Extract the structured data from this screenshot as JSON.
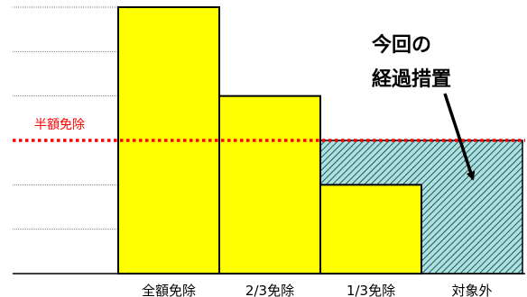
{
  "chart_data": {
    "type": "bar",
    "title": "",
    "xlabel": "",
    "ylabel": "",
    "categories": [
      "全額免除",
      "2/3免除",
      "1/3免除",
      "対象外"
    ],
    "values": [
      1,
      0.6667,
      0.3333,
      0
    ],
    "ylim": [
      0,
      1
    ],
    "grid": true,
    "colors": {
      "bar": "#ffff00",
      "bar_edge": "#000000",
      "hatch": "#aee0e0",
      "hatch_line": "#1a5a5a",
      "reference_line": "#ff0000",
      "grid": "#808080"
    },
    "reference_line": {
      "label": "半額免除",
      "value": 0.5
    },
    "highlight": {
      "from_category": "1/3免除",
      "to_category": "対象外",
      "upper_value": 0.5,
      "pattern": "diagonal-hatch"
    },
    "annotation": {
      "lines": [
        "今回の",
        "経過措置"
      ],
      "arrow_target": "対象外"
    }
  }
}
